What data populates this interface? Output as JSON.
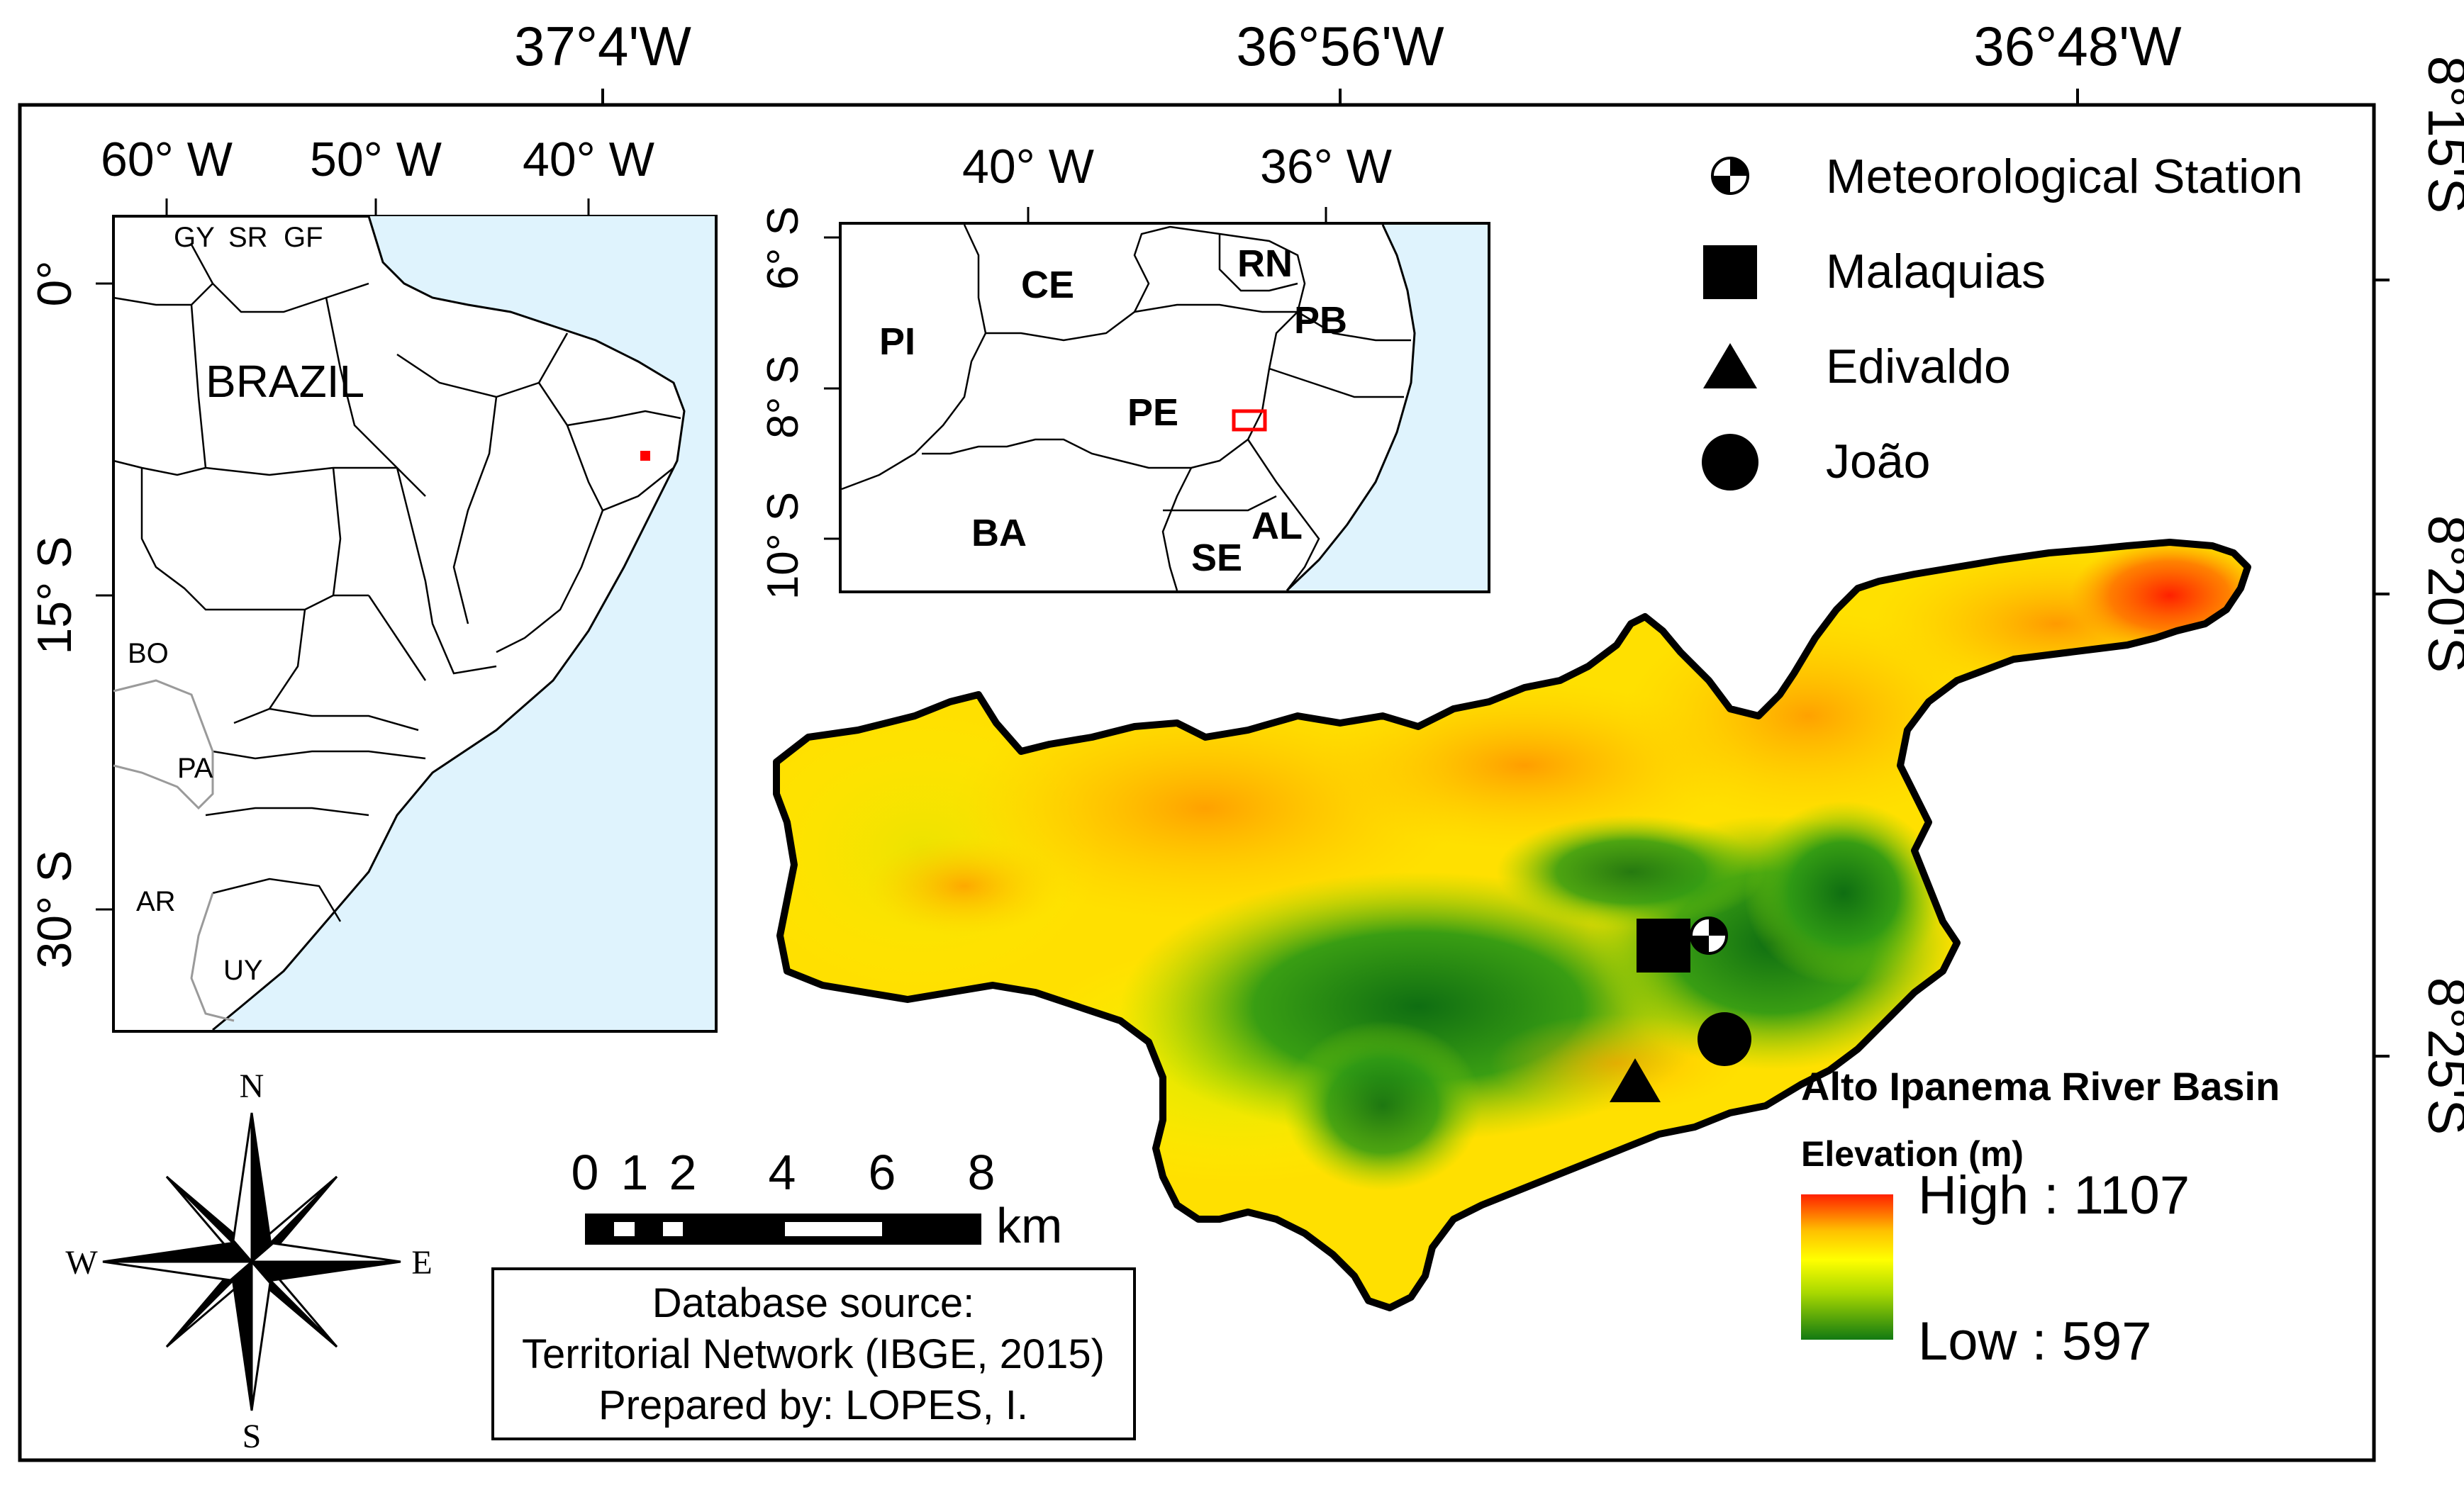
{
  "frame": {
    "top_coords": [
      "37°4'W",
      "36°56'W",
      "36°48'W"
    ],
    "right_coords": [
      "8°15'S",
      "8°20'S",
      "8°25'S"
    ]
  },
  "inset_brazil": {
    "top_coords": [
      "60° W",
      "50° W",
      "40° W"
    ],
    "left_coords": [
      "0°",
      "15° S",
      "30° S"
    ],
    "country_label": "BRAZIL",
    "neighbor_labels": [
      "GY",
      "SR",
      "GF",
      "BO",
      "PA",
      "AR",
      "UY"
    ],
    "highlight_color": "#ff0000",
    "ocean_color": "#dff3fd"
  },
  "inset_region": {
    "top_coords": [
      "40° W",
      "36° W"
    ],
    "left_coords": [
      "6° S",
      "8° S",
      "10° S"
    ],
    "state_labels": [
      "CE",
      "RN",
      "PB",
      "PI",
      "PE",
      "BA",
      "AL",
      "SE"
    ],
    "highlight_color": "#ff0000"
  },
  "legend": {
    "items": [
      {
        "icon": "meteorological-station-icon",
        "label": "Meteorological Station"
      },
      {
        "icon": "square-icon",
        "label": "Malaquias"
      },
      {
        "icon": "triangle-icon",
        "label": "Edivaldo"
      },
      {
        "icon": "circle-icon",
        "label": "João"
      }
    ]
  },
  "elevation_legend": {
    "title": "Alto Ipanema River Basin",
    "subtitle": "Elevation (m)",
    "high_label": "High : 1107",
    "low_label": "Low : 597",
    "colors": [
      "#ff2000",
      "#ffc000",
      "#ffff00",
      "#a8d800",
      "#127a12"
    ]
  },
  "scale_bar": {
    "ticks": [
      "0",
      "1",
      "2",
      "4",
      "6",
      "8"
    ],
    "unit": "km"
  },
  "north_arrow": {
    "n": "N",
    "e": "E",
    "s": "S",
    "w": "W"
  },
  "source_box": {
    "lines": [
      "Database source:",
      "Territorial Network (IBGE, 2015)",
      "Prepared by: LOPES, I."
    ]
  }
}
